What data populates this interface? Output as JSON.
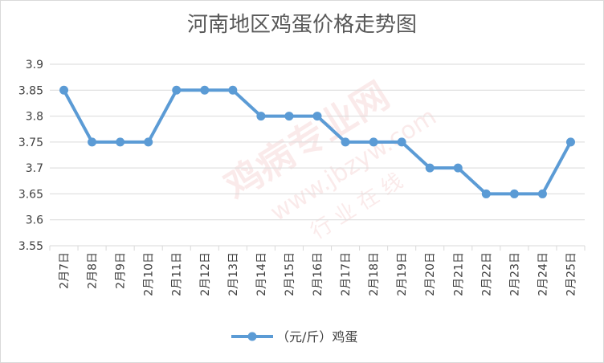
{
  "chart_data": {
    "type": "line",
    "title": "河南地区鸡蛋价格走势图",
    "categories": [
      "2月7日",
      "2月8日",
      "2月9日",
      "2月10日",
      "2月11日",
      "2月12日",
      "2月13日",
      "2月14日",
      "2月15日",
      "2月16日",
      "2月17日",
      "2月18日",
      "2月19日",
      "2月20日",
      "2月21日",
      "2月22日",
      "2月23日",
      "2月24日",
      "2月25日"
    ],
    "series": [
      {
        "name": "（元/斤）鸡蛋",
        "values": [
          3.85,
          3.75,
          3.75,
          3.75,
          3.85,
          3.85,
          3.85,
          3.8,
          3.8,
          3.8,
          3.75,
          3.75,
          3.75,
          3.7,
          3.7,
          3.65,
          3.65,
          3.65,
          3.75
        ]
      }
    ],
    "ylim": [
      3.55,
      3.9
    ],
    "yticks": [
      "3.55",
      "3.6",
      "3.65",
      "3.7",
      "3.75",
      "3.8",
      "3.85",
      "3.9"
    ],
    "grid": true,
    "legend": "bottom",
    "colors": {
      "line": "#5b9bd5",
      "grid": "#d9d9d9",
      "axis_text": "#404040",
      "title": "#595959"
    }
  },
  "watermark": {
    "text_cn": "鸡病专业网",
    "text_url": "www.jbzyw.com",
    "text_sub": "行 业 在 线"
  }
}
